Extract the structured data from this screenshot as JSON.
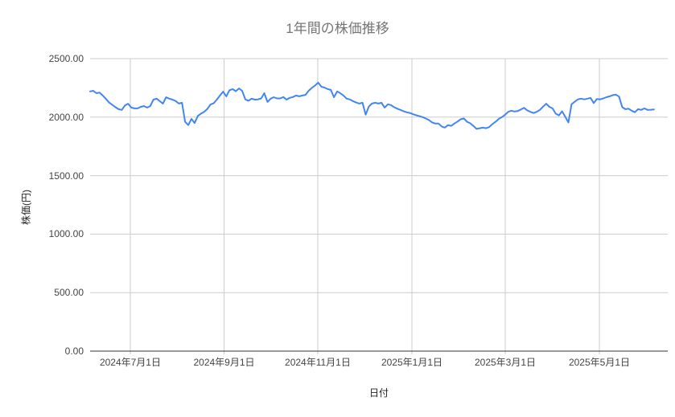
{
  "chart_data": {
    "type": "line",
    "title": "1年間の株価推移",
    "xlabel": "日付",
    "ylabel": "株価(円)",
    "ylim": [
      0,
      2500
    ],
    "grid": true,
    "legend": "none",
    "y_tick_labels": [
      "0.00",
      "500.00",
      "1000.00",
      "1500.00",
      "2000.00",
      "2500.00"
    ],
    "x_ticks": [
      {
        "label": "2024年7月1日",
        "pos": 0.0696
      },
      {
        "label": "2024年9月1日",
        "pos": 0.2319
      },
      {
        "label": "2024年11月1日",
        "pos": 0.3941
      },
      {
        "label": "2025年1月1日",
        "pos": 0.5571
      },
      {
        "label": "2025年3月1日",
        "pos": 0.7187
      },
      {
        "label": "2025年5月1日",
        "pos": 0.8816
      }
    ],
    "line_span_frac": 0.976,
    "colors": {
      "line": "#4285f4",
      "gridline": "#cccccc",
      "baseline": "#333333",
      "title_text": "#757575",
      "tick_text": "#444444",
      "axis_title_text": "#222222"
    },
    "series": [
      {
        "name": "株価",
        "values": [
          2220,
          2225,
          2205,
          2210,
          2185,
          2155,
          2125,
          2105,
          2085,
          2068,
          2062,
          2100,
          2115,
          2082,
          2075,
          2075,
          2088,
          2095,
          2082,
          2095,
          2150,
          2158,
          2137,
          2116,
          2170,
          2158,
          2150,
          2138,
          2116,
          2123,
          1960,
          1932,
          1985,
          1950,
          2010,
          2030,
          2045,
          2070,
          2108,
          2118,
          2150,
          2185,
          2218,
          2178,
          2230,
          2240,
          2222,
          2245,
          2225,
          2152,
          2140,
          2158,
          2150,
          2152,
          2160,
          2205,
          2130,
          2158,
          2170,
          2160,
          2160,
          2172,
          2150,
          2165,
          2172,
          2185,
          2178,
          2185,
          2190,
          2225,
          2250,
          2270,
          2295,
          2260,
          2253,
          2240,
          2233,
          2170,
          2220,
          2205,
          2185,
          2158,
          2151,
          2137,
          2125,
          2116,
          2123,
          2021,
          2090,
          2116,
          2123,
          2116,
          2123,
          2082,
          2110,
          2103,
          2085,
          2072,
          2062,
          2050,
          2041,
          2036,
          2025,
          2016,
          2008,
          2000,
          1988,
          1975,
          1955,
          1945,
          1945,
          1920,
          1911,
          1932,
          1925,
          1945,
          1962,
          1982,
          1988,
          1960,
          1948,
          1925,
          1900,
          1905,
          1910,
          1905,
          1915,
          1940,
          1960,
          1985,
          2000,
          2020,
          2045,
          2055,
          2048,
          2052,
          2065,
          2080,
          2058,
          2045,
          2035,
          2045,
          2062,
          2090,
          2115,
          2088,
          2075,
          2030,
          2015,
          2050,
          2005,
          1955,
          2110,
          2132,
          2152,
          2158,
          2152,
          2158,
          2165,
          2120,
          2155,
          2152,
          2160,
          2170,
          2178,
          2188,
          2192,
          2175,
          2085,
          2068,
          2072,
          2055,
          2042,
          2068,
          2062,
          2075,
          2062,
          2063,
          2065
        ]
      }
    ]
  }
}
